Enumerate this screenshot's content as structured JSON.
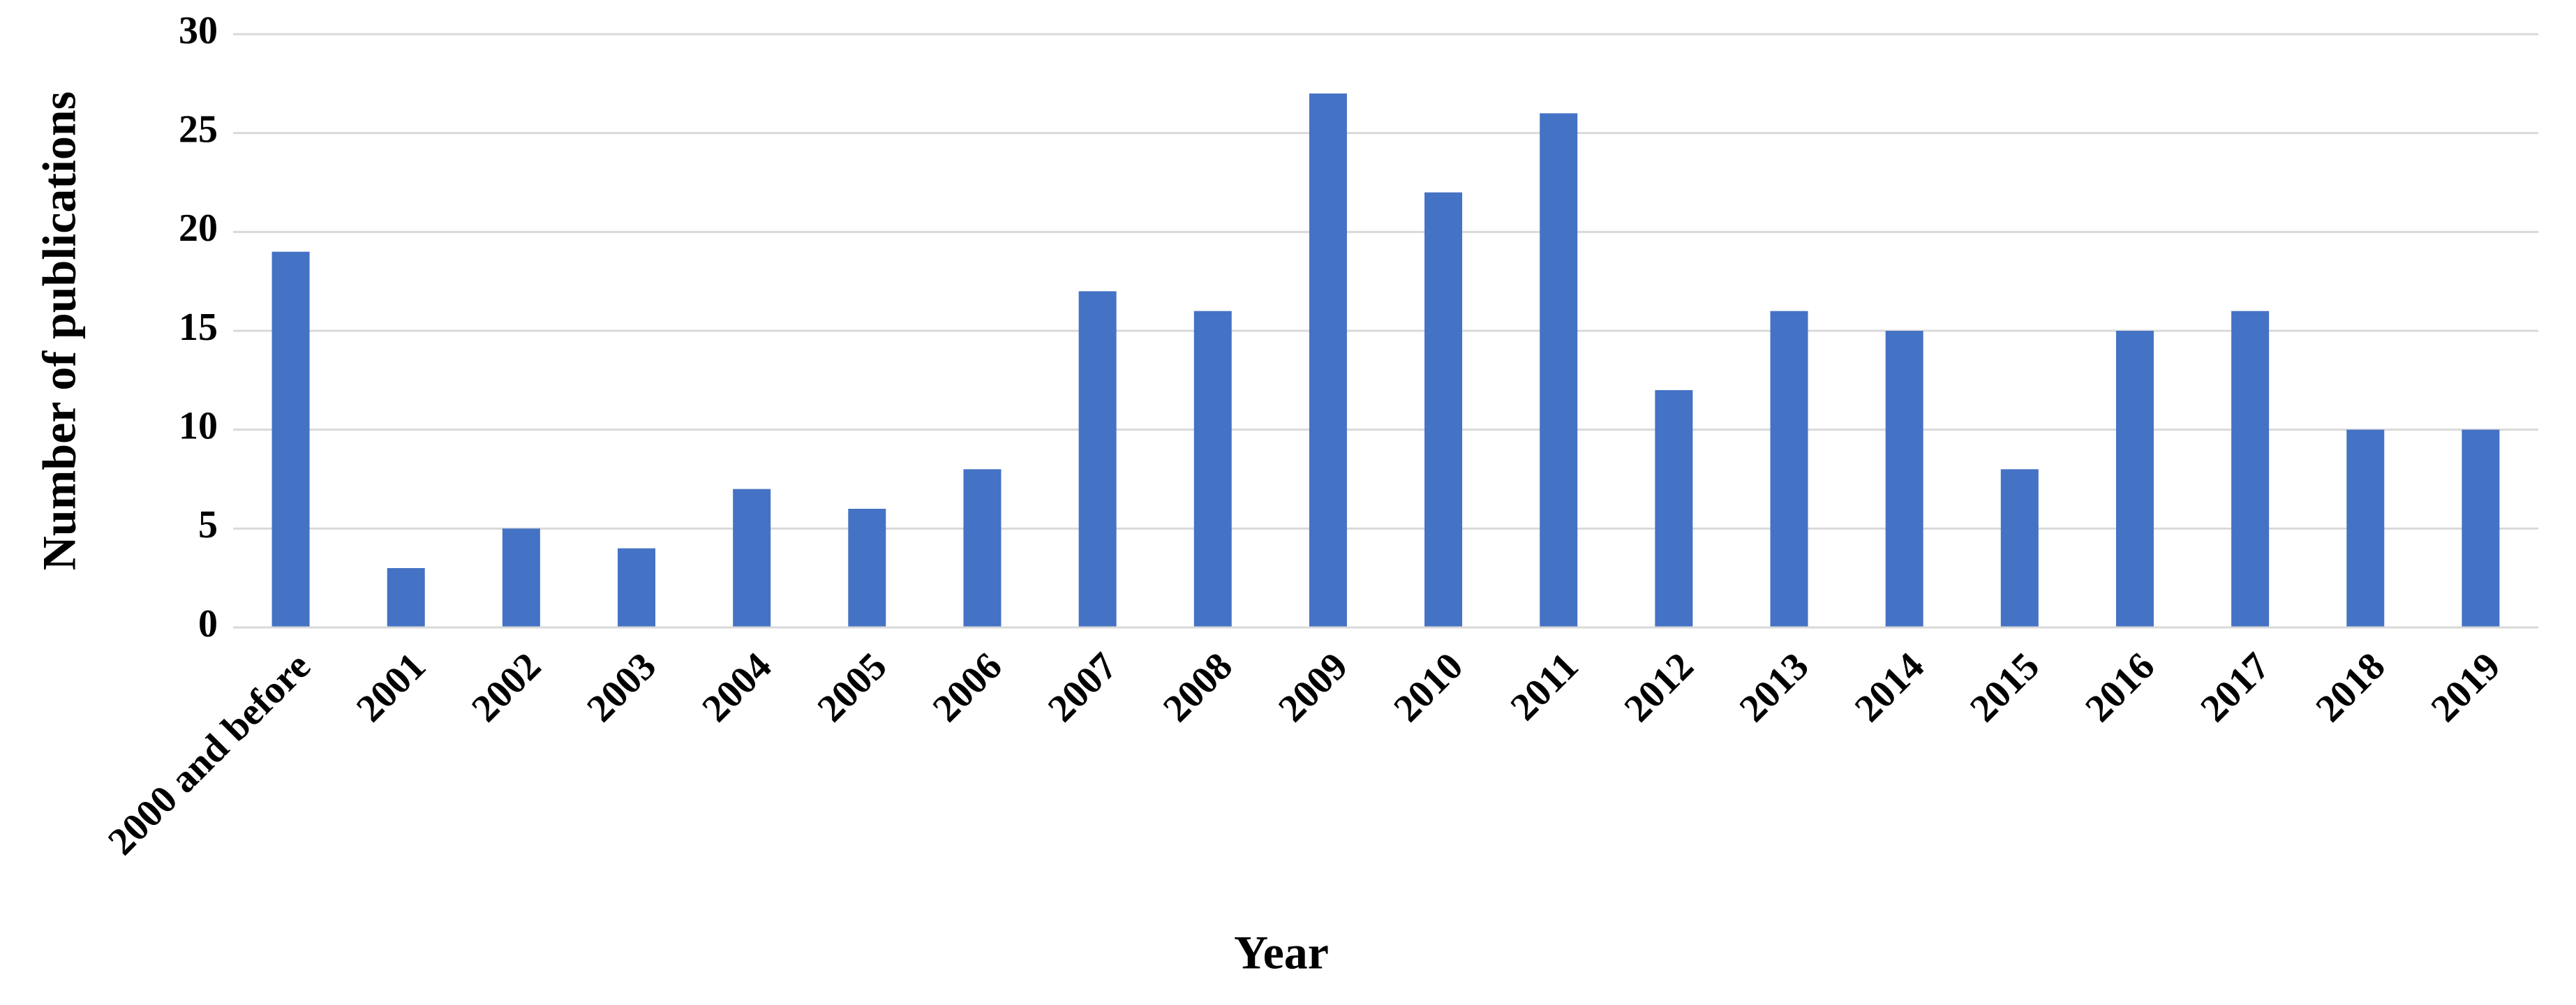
{
  "chart_data": {
    "type": "bar",
    "x_label": "Year",
    "y_label": "Number of publications",
    "categories": [
      "2000 and before",
      "2001",
      "2002",
      "2003",
      "2004",
      "2005",
      "2006",
      "2007",
      "2008",
      "2009",
      "2010",
      "2011",
      "2012",
      "2013",
      "2014",
      "2015",
      "2016",
      "2017",
      "2018",
      "2019"
    ],
    "values": [
      19,
      3,
      5,
      4,
      7,
      6,
      8,
      17,
      16,
      27,
      22,
      26,
      12,
      16,
      15,
      8,
      15,
      16,
      10,
      10
    ],
    "color": "#4472c4",
    "ylim": [
      0,
      30
    ],
    "yticks": [
      0,
      5,
      10,
      15,
      20,
      25,
      30
    ],
    "grid": true
  }
}
